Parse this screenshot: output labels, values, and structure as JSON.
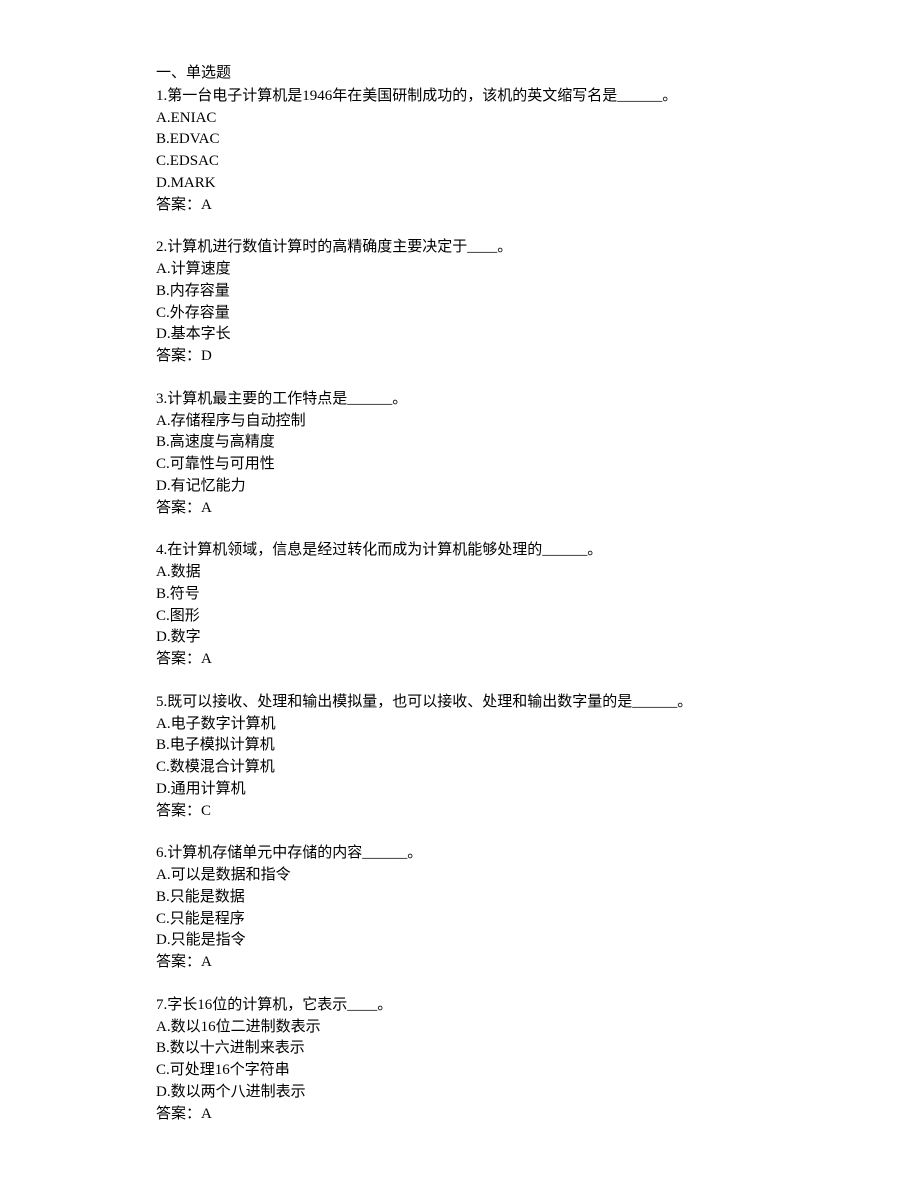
{
  "section_title": "一、单选题",
  "questions": [
    {
      "number": "1",
      "text": "第一台电子计算机是1946年在美国研制成功的，该机的英文缩写名是______。",
      "options": [
        {
          "letter": "A",
          "text": "ENIAC"
        },
        {
          "letter": "B",
          "text": "EDVAC"
        },
        {
          "letter": "C",
          "text": "EDSAC"
        },
        {
          "letter": "D",
          "text": "MARK"
        }
      ],
      "answer_label": "答案：",
      "answer": "A"
    },
    {
      "number": "2",
      "text": "计算机进行数值计算时的高精确度主要决定于____。",
      "options": [
        {
          "letter": "A",
          "text": "计算速度"
        },
        {
          "letter": "B",
          "text": "内存容量"
        },
        {
          "letter": "C",
          "text": "外存容量"
        },
        {
          "letter": "D",
          "text": "基本字长"
        }
      ],
      "answer_label": "答案：",
      "answer": "D"
    },
    {
      "number": "3",
      "text": "计算机最主要的工作特点是______。",
      "options": [
        {
          "letter": "A",
          "text": "存储程序与自动控制"
        },
        {
          "letter": "B",
          "text": "高速度与高精度"
        },
        {
          "letter": "C",
          "text": "可靠性与可用性"
        },
        {
          "letter": "D",
          "text": "有记忆能力"
        }
      ],
      "answer_label": "答案：",
      "answer": "A"
    },
    {
      "number": "4",
      "text": "在计算机领域，信息是经过转化而成为计算机能够处理的______。",
      "options": [
        {
          "letter": "A",
          "text": "数据"
        },
        {
          "letter": "B",
          "text": "符号"
        },
        {
          "letter": "C",
          "text": "图形"
        },
        {
          "letter": "D",
          "text": "数字"
        }
      ],
      "answer_label": "答案：",
      "answer": "A"
    },
    {
      "number": "5",
      "text": "既可以接收、处理和输出模拟量，也可以接收、处理和输出数字量的是______。",
      "options": [
        {
          "letter": "A",
          "text": "电子数字计算机"
        },
        {
          "letter": "B",
          "text": "电子模拟计算机"
        },
        {
          "letter": "C",
          "text": "数模混合计算机"
        },
        {
          "letter": "D",
          "text": "通用计算机"
        }
      ],
      "answer_label": "答案：",
      "answer": "C"
    },
    {
      "number": "6",
      "text": "计算机存储单元中存储的内容______。",
      "options": [
        {
          "letter": "A",
          "text": "可以是数据和指令"
        },
        {
          "letter": "B",
          "text": "只能是数据"
        },
        {
          "letter": "C",
          "text": "只能是程序"
        },
        {
          "letter": "D",
          "text": "只能是指令"
        }
      ],
      "answer_label": "答案：",
      "answer": "A"
    },
    {
      "number": "7",
      "text": "字长16位的计算机，它表示____。",
      "options": [
        {
          "letter": "A",
          "text": "数以16位二进制数表示"
        },
        {
          "letter": "B",
          "text": "数以十六进制来表示"
        },
        {
          "letter": "C",
          "text": "可处理16个字符串"
        },
        {
          "letter": "D",
          "text": "数以两个八进制表示"
        }
      ],
      "answer_label": "答案：",
      "answer": "A"
    }
  ]
}
